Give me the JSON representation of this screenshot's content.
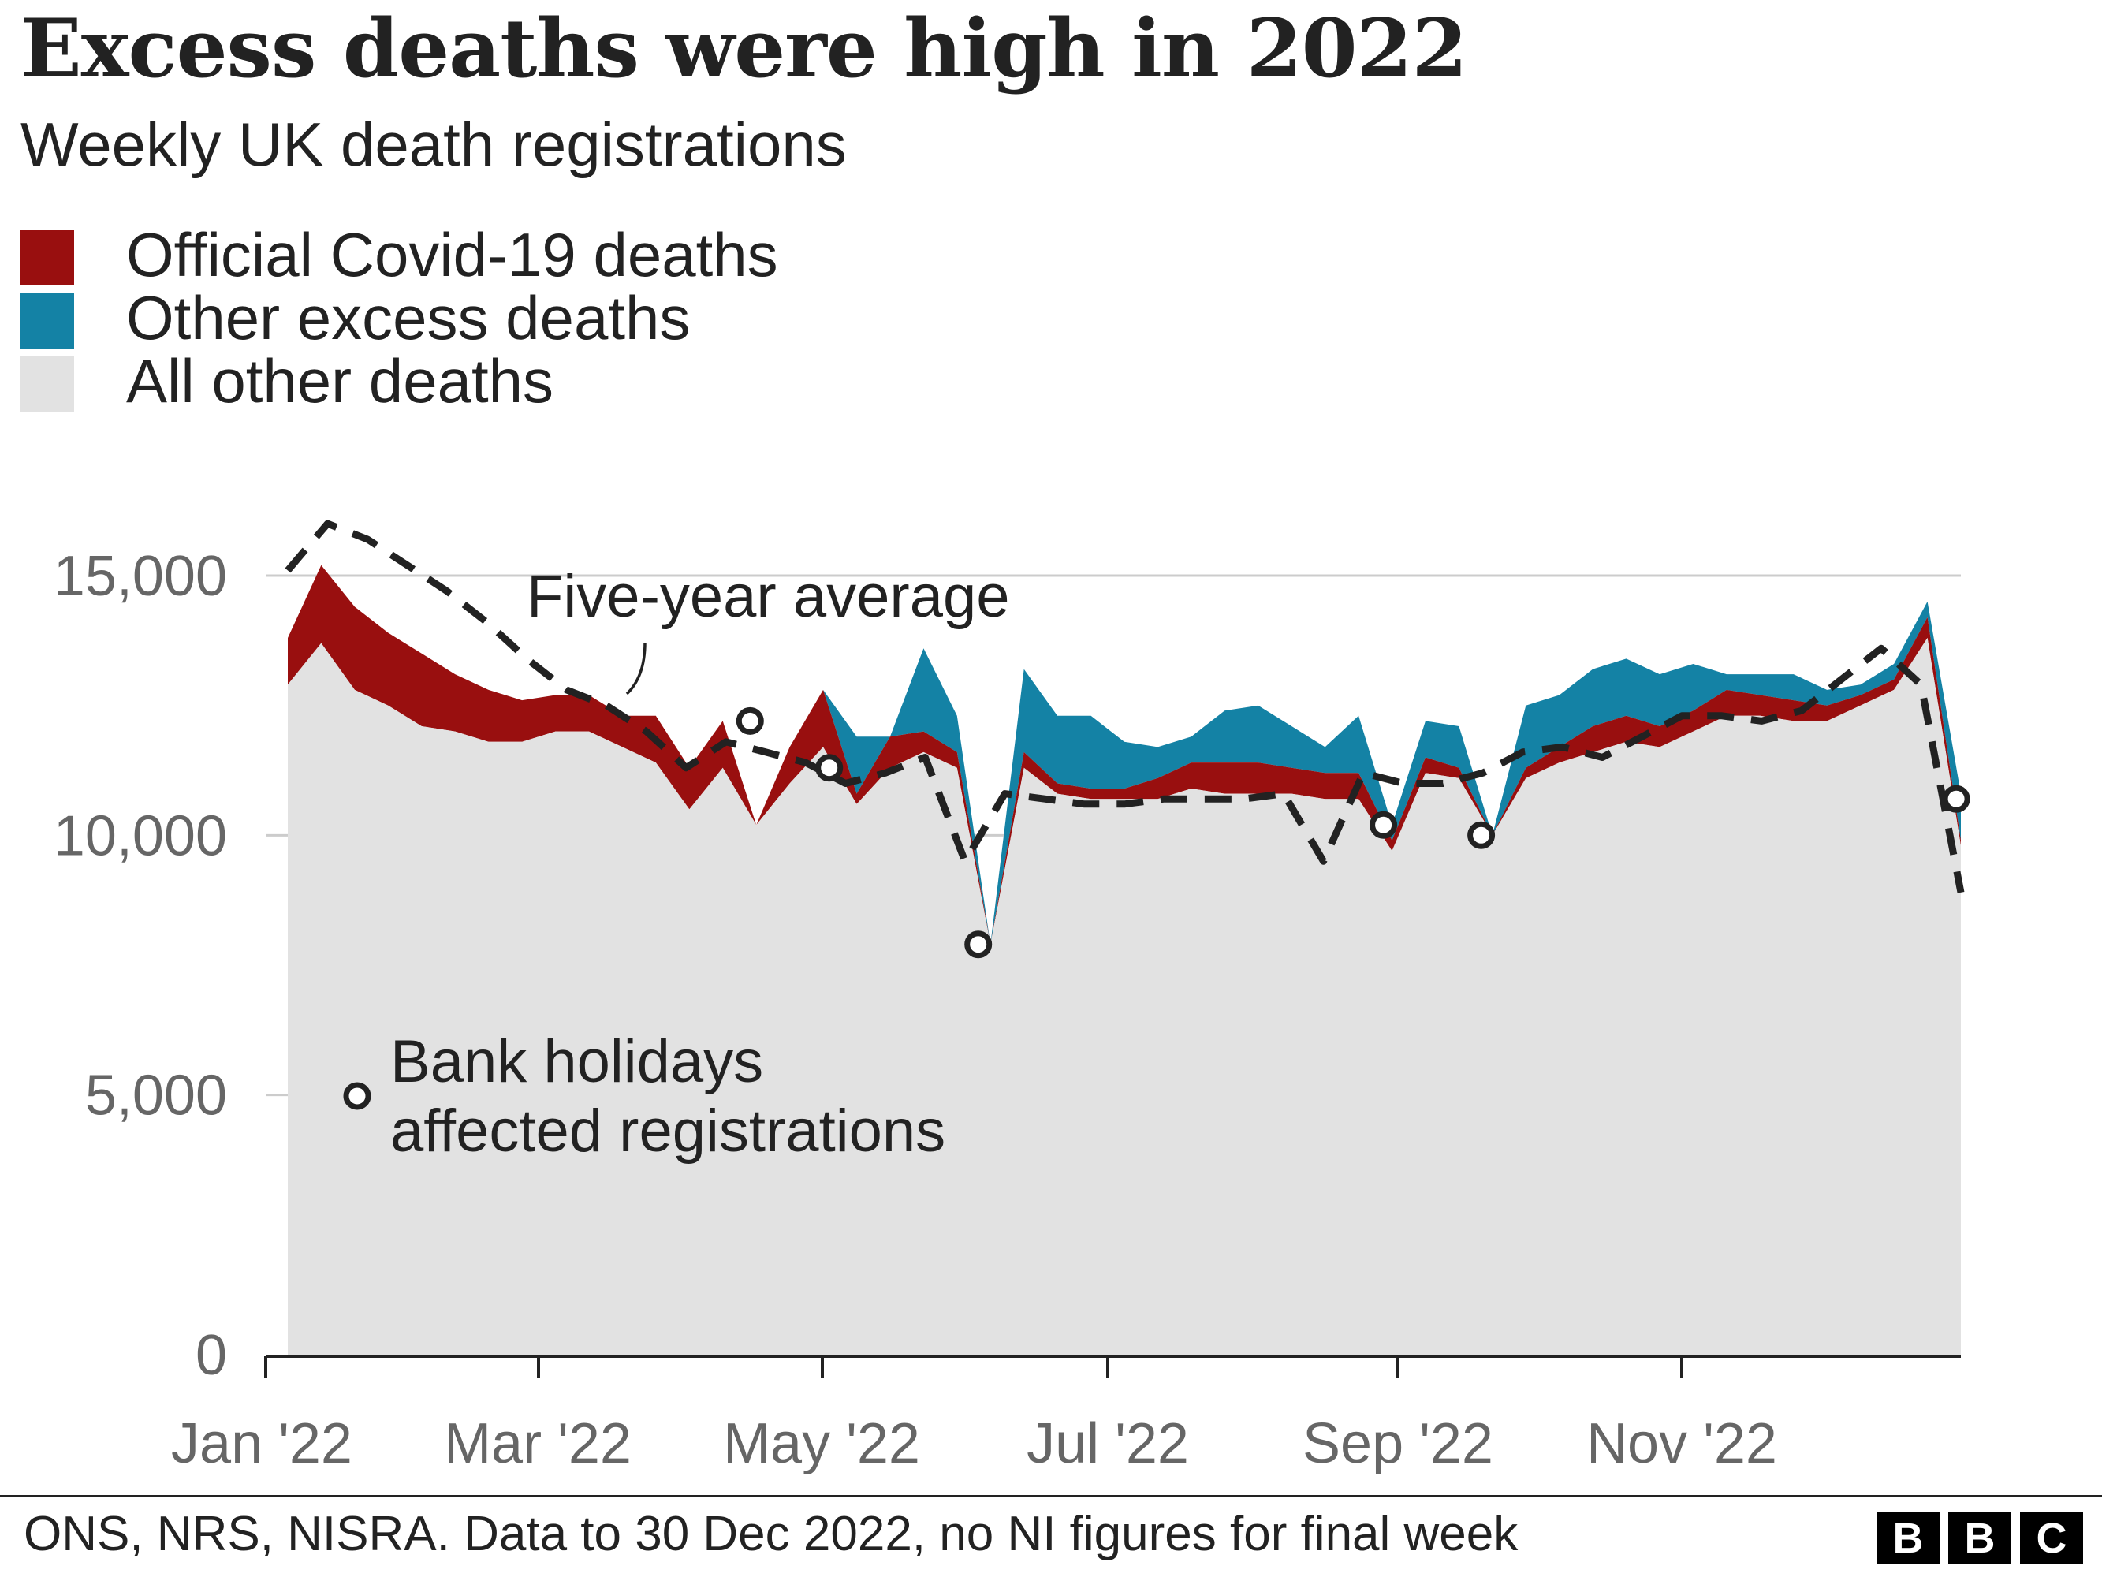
{
  "title": "Excess deaths were high in 2022",
  "subtitle": "Weekly UK death registrations",
  "legend": [
    {
      "label": "Official Covid-19 deaths",
      "color": "#990f0f"
    },
    {
      "label": "Other excess deaths",
      "color": "#1482a5"
    },
    {
      "label": "All other deaths",
      "color": "#e2e2e2"
    }
  ],
  "annotations": {
    "five_year_average": "Five-year average",
    "bank_holidays_line1": "Bank holidays",
    "bank_holidays_line2": "affected registrations"
  },
  "source": "ONS, NRS, NISRA. Data to 30 Dec 2022, no NI figures for final week",
  "logo": [
    "B",
    "B",
    "C"
  ],
  "chart_data": {
    "type": "area",
    "title": "Excess deaths were high in 2022",
    "subtitle": "Weekly UK death registrations",
    "xlabel": "",
    "ylabel": "",
    "x_tick_labels": [
      "Jan '22",
      "Mar '22",
      "May '22",
      "Jul '22",
      "Sep '22",
      "Nov '22"
    ],
    "y_ticks": [
      0,
      5000,
      10000,
      15000
    ],
    "y_tick_labels": [
      "0",
      "5,000",
      "10,000",
      "15,000"
    ],
    "ylim": [
      0,
      16500
    ],
    "grid": true,
    "stacking": "stacked",
    "series": [
      {
        "name": "All other deaths",
        "values": [
          12900,
          13700,
          12800,
          12500,
          12100,
          12000,
          11800,
          11800,
          12000,
          12000,
          11700,
          11400,
          10500,
          11300,
          10200,
          11000,
          11700,
          10600,
          11300,
          11600,
          11300,
          7900,
          11300,
          10800,
          10700,
          10700,
          10700,
          10900,
          10800,
          10800,
          10800,
          10700,
          10700,
          9700,
          11200,
          11100,
          10000,
          11100,
          11400,
          11600,
          11800,
          11700,
          12000,
          12300,
          12300,
          12200,
          12200,
          12500,
          12800,
          13800,
          9800
        ]
      },
      {
        "name": "Official Covid-19 deaths",
        "values": [
          900,
          1500,
          1600,
          1400,
          1400,
          1100,
          1000,
          800,
          700,
          700,
          600,
          900,
          800,
          900,
          0,
          700,
          1100,
          200,
          600,
          400,
          300,
          0,
          300,
          200,
          200,
          200,
          400,
          500,
          600,
          600,
          500,
          500,
          500,
          200,
          300,
          200,
          0,
          200,
          300,
          500,
          500,
          400,
          400,
          500,
          400,
          400,
          300,
          200,
          200,
          400,
          100
        ]
      },
      {
        "name": "Other excess deaths",
        "values": [
          0,
          0,
          0,
          0,
          0,
          0,
          0,
          0,
          0,
          0,
          0,
          0,
          0,
          0,
          0,
          0,
          0,
          1100,
          0,
          1600,
          700,
          0,
          1600,
          1300,
          1400,
          900,
          600,
          500,
          1000,
          1100,
          800,
          500,
          1100,
          300,
          700,
          800,
          0,
          1200,
          1000,
          1100,
          1100,
          1000,
          900,
          300,
          400,
          500,
          300,
          200,
          300,
          300,
          900
        ]
      }
    ],
    "five_year_average": [
      15100,
      16000,
      15700,
      15200,
      14700,
      14100,
      13400,
      12800,
      12500,
      12000,
      11300,
      11800,
      11600,
      11400,
      11000,
      11200,
      11500,
      9500,
      10800,
      10700,
      10600,
      10600,
      10700,
      10700,
      10700,
      10800,
      9500,
      11200,
      11000,
      11000,
      11200,
      11600,
      11700,
      11500,
      11900,
      12300,
      12300,
      12200,
      12400,
      13000,
      13600,
      12900,
      8900
    ],
    "bank_holiday_points": [
      {
        "date": "2022-04-15",
        "value": 12200
      },
      {
        "date": "2022-05-02",
        "value": 11300
      },
      {
        "date": "2022-06-03",
        "value": 7900
      },
      {
        "date": "2022-08-29",
        "value": 10200
      },
      {
        "date": "2022-09-19",
        "value": 10000
      },
      {
        "date": "2022-12-30",
        "value": 10700
      }
    ]
  }
}
